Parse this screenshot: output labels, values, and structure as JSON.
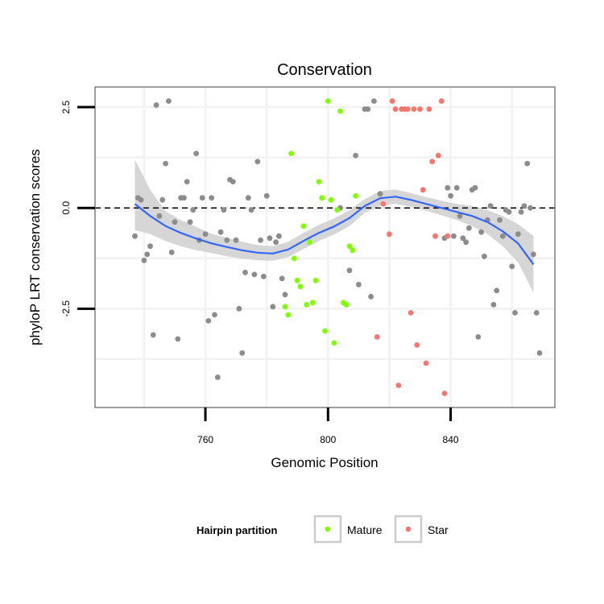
{
  "chart_data": {
    "type": "scatter",
    "title": "Conservation",
    "xlabel": "Genomic Position",
    "ylabel": "phyloP LRT conservation scores",
    "xlim": [
      724,
      874
    ],
    "ylim": [
      -4.95,
      3.0
    ],
    "x_ticks": [
      760,
      800,
      840
    ],
    "y_ticks": [
      -2.5,
      0.0,
      2.5
    ],
    "x_tick_labels": [
      "760",
      "800",
      "840"
    ],
    "y_tick_labels": [
      "-2.5",
      "0.0",
      "2.5"
    ],
    "reference_line": {
      "y": 0,
      "style": "dashed"
    },
    "legend": {
      "title": "Hairpin partition",
      "position": "bottom",
      "entries": [
        {
          "label": "Mature",
          "color": "#7fff00"
        },
        {
          "label": "Star",
          "color": "#f8766d"
        }
      ]
    },
    "colors": {
      "other": "#8c8c8c",
      "mature": "#7fff00",
      "star": "#f8766d",
      "smooth": "#3366ff",
      "band": "#d6d6d6"
    },
    "series": [
      {
        "name": "Other",
        "points": [
          [
            737,
            -0.7
          ],
          [
            738,
            0.25
          ],
          [
            739,
            0.2
          ],
          [
            740,
            -1.3
          ],
          [
            741,
            -1.15
          ],
          [
            742,
            -0.95
          ],
          [
            743,
            -3.15
          ],
          [
            744,
            2.55
          ],
          [
            745,
            -0.2
          ],
          [
            746,
            0.2
          ],
          [
            747,
            1.1
          ],
          [
            748,
            2.65
          ],
          [
            749,
            -1.1
          ],
          [
            750,
            -0.35
          ],
          [
            751,
            -3.25
          ],
          [
            752,
            0.25
          ],
          [
            753,
            0.25
          ],
          [
            754,
            0.65
          ],
          [
            755,
            -0.35
          ],
          [
            756,
            -0.05
          ],
          [
            757,
            1.35
          ],
          [
            758,
            -0.8
          ],
          [
            759,
            0.25
          ],
          [
            760,
            -0.65
          ],
          [
            761,
            -2.8
          ],
          [
            762,
            0.25
          ],
          [
            763,
            -2.65
          ],
          [
            764,
            -4.2
          ],
          [
            765,
            -0.6
          ],
          [
            766,
            -0.05
          ],
          [
            767,
            -0.8
          ],
          [
            768,
            0.7
          ],
          [
            769,
            0.65
          ],
          [
            770,
            -0.8
          ],
          [
            771,
            -2.5
          ],
          [
            772,
            -3.6
          ],
          [
            773,
            -1.6
          ],
          [
            774,
            0.25
          ],
          [
            775,
            -0.05
          ],
          [
            776,
            -1.65
          ],
          [
            777,
            1.15
          ],
          [
            778,
            -0.8
          ],
          [
            779,
            -1.7
          ],
          [
            780,
            0.3
          ],
          [
            781,
            -0.75
          ],
          [
            782,
            -2.45
          ],
          [
            783,
            -0.85
          ],
          [
            784,
            -0.7
          ],
          [
            785,
            -1.75
          ],
          [
            786,
            -2.15
          ],
          [
            804,
            0.0
          ],
          [
            807,
            -1.55
          ],
          [
            809,
            1.3
          ],
          [
            810,
            -1.9
          ],
          [
            812,
            2.45
          ],
          [
            813,
            2.45
          ],
          [
            814,
            -2.2
          ],
          [
            815,
            2.65
          ],
          [
            817,
            0.35
          ],
          [
            838,
            -0.75
          ],
          [
            839,
            0.5
          ],
          [
            840,
            0.3
          ],
          [
            841,
            -0.7
          ],
          [
            842,
            0.5
          ],
          [
            843,
            -0.2
          ],
          [
            844,
            -0.75
          ],
          [
            845,
            -0.85
          ],
          [
            846,
            -0.5
          ],
          [
            847,
            0.45
          ],
          [
            848,
            0.5
          ],
          [
            849,
            -3.2
          ],
          [
            850,
            -0.6
          ],
          [
            851,
            -1.2
          ],
          [
            852,
            -0.3
          ],
          [
            853,
            0.05
          ],
          [
            854,
            -2.4
          ],
          [
            855,
            -2.05
          ],
          [
            856,
            -0.3
          ],
          [
            857,
            -0.7
          ],
          [
            858,
            -0.05
          ],
          [
            859,
            -0.1
          ],
          [
            860,
            -1.45
          ],
          [
            861,
            -2.6
          ],
          [
            862,
            -0.65
          ],
          [
            863,
            -0.1
          ],
          [
            864,
            0.05
          ],
          [
            865,
            1.1
          ],
          [
            866,
            0.0
          ],
          [
            867,
            -1.15
          ],
          [
            868,
            -2.6
          ],
          [
            869,
            -3.6
          ]
        ]
      },
      {
        "name": "Mature",
        "points": [
          [
            786,
            -2.45
          ],
          [
            787,
            -2.65
          ],
          [
            788,
            1.35
          ],
          [
            789,
            -1.25
          ],
          [
            790,
            -1.8
          ],
          [
            791,
            -1.95
          ],
          [
            792,
            -0.45
          ],
          [
            793,
            -2.4
          ],
          [
            794,
            -0.85
          ],
          [
            795,
            -2.35
          ],
          [
            796,
            -1.8
          ],
          [
            797,
            0.65
          ],
          [
            798,
            0.25
          ],
          [
            799,
            -3.05
          ],
          [
            800,
            2.65
          ],
          [
            801,
            0.2
          ],
          [
            802,
            -3.35
          ],
          [
            803,
            -0.05
          ],
          [
            804,
            2.4
          ],
          [
            805,
            -2.35
          ],
          [
            806,
            -2.4
          ],
          [
            807,
            -0.95
          ],
          [
            808,
            -1.05
          ],
          [
            809,
            0.3
          ]
        ]
      },
      {
        "name": "Star",
        "points": [
          [
            816,
            -3.2
          ],
          [
            818,
            0.1
          ],
          [
            820,
            -0.65
          ],
          [
            821,
            2.65
          ],
          [
            822,
            2.45
          ],
          [
            823,
            -4.4
          ],
          [
            824,
            2.45
          ],
          [
            825,
            2.45
          ],
          [
            826,
            2.45
          ],
          [
            827,
            -2.6
          ],
          [
            828,
            2.45
          ],
          [
            829,
            -3.4
          ],
          [
            830,
            2.45
          ],
          [
            831,
            0.45
          ],
          [
            832,
            -3.85
          ],
          [
            833,
            2.45
          ],
          [
            834,
            1.15
          ],
          [
            835,
            -0.7
          ],
          [
            836,
            1.3
          ],
          [
            837,
            2.65
          ],
          [
            838,
            -4.6
          ],
          [
            839,
            -0.7
          ]
        ]
      }
    ],
    "smooth_line": {
      "x": [
        737,
        742,
        747,
        752,
        757,
        762,
        767,
        772,
        777,
        782,
        787,
        792,
        797,
        802,
        807,
        812,
        817,
        822,
        827,
        832,
        837,
        842,
        847,
        852,
        857,
        862,
        867
      ],
      "y": [
        0.1,
        -0.2,
        -0.45,
        -0.62,
        -0.76,
        -0.88,
        -0.97,
        -1.05,
        -1.11,
        -1.13,
        -1.03,
        -0.82,
        -0.62,
        -0.46,
        -0.25,
        0.05,
        0.24,
        0.28,
        0.2,
        0.1,
        0.0,
        -0.1,
        -0.2,
        -0.35,
        -0.58,
        -0.88,
        -1.4
      ],
      "lower": [
        -0.55,
        -0.65,
        -0.82,
        -0.95,
        -1.05,
        -1.12,
        -1.2,
        -1.26,
        -1.3,
        -1.31,
        -1.22,
        -1.02,
        -0.82,
        -0.66,
        -0.45,
        -0.12,
        0.06,
        0.1,
        0.03,
        -0.07,
        -0.18,
        -0.3,
        -0.45,
        -0.65,
        -0.95,
        -1.35,
        -2.1
      ],
      "upper": [
        1.2,
        0.45,
        -0.08,
        -0.3,
        -0.47,
        -0.64,
        -0.74,
        -0.84,
        -0.92,
        -0.95,
        -0.84,
        -0.62,
        -0.42,
        -0.26,
        -0.05,
        0.22,
        0.42,
        0.46,
        0.37,
        0.27,
        0.18,
        0.1,
        0.05,
        -0.05,
        -0.2,
        -0.4,
        -0.7
      ]
    }
  }
}
